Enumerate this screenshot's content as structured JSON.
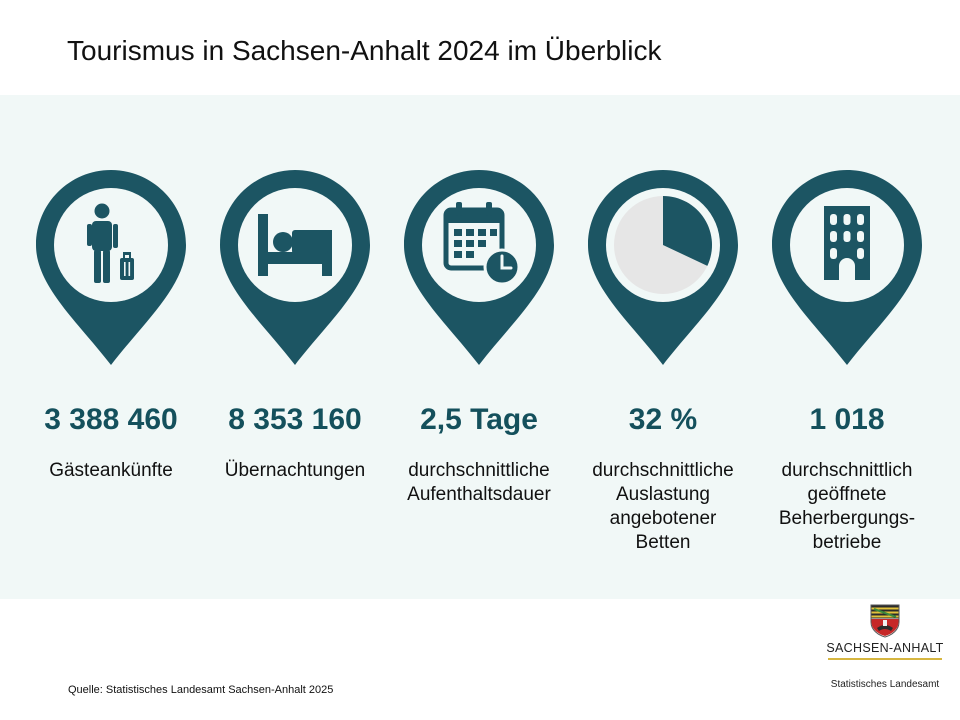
{
  "title": "Tourismus in Sachsen-Anhalt 2024 im Überblick",
  "colors": {
    "accent": "#1c5563",
    "panel_background": "#f1f8f7",
    "value_text": "#14505c",
    "pie_empty": "#e6e6e6"
  },
  "kpis": [
    {
      "icon": "traveler-with-luggage-icon",
      "value": "3 388 460",
      "label": "Gästeankünfte"
    },
    {
      "icon": "bed-icon",
      "value": "8 353 160",
      "label": "Übernachtungen"
    },
    {
      "icon": "calendar-clock-icon",
      "value": "2,5 Tage",
      "label": "durchschnittliche\nAufenthaltsdauer"
    },
    {
      "icon": "pie-chart-icon",
      "value": "32 %",
      "label": "durchschnittliche\nAuslastung\nangebotener\nBetten",
      "fraction": 0.32
    },
    {
      "icon": "building-icon",
      "value": "1 018",
      "label": "durchschnittlich\ngeöffnete\nBeherbergungs-\nbetriebe"
    }
  ],
  "source": "Quelle:  Statistisches Landesamt Sachsen-Anhalt 2025",
  "logo": {
    "name": "SACHSEN-ANHALT",
    "subtitle": "Statistisches Landesamt"
  }
}
